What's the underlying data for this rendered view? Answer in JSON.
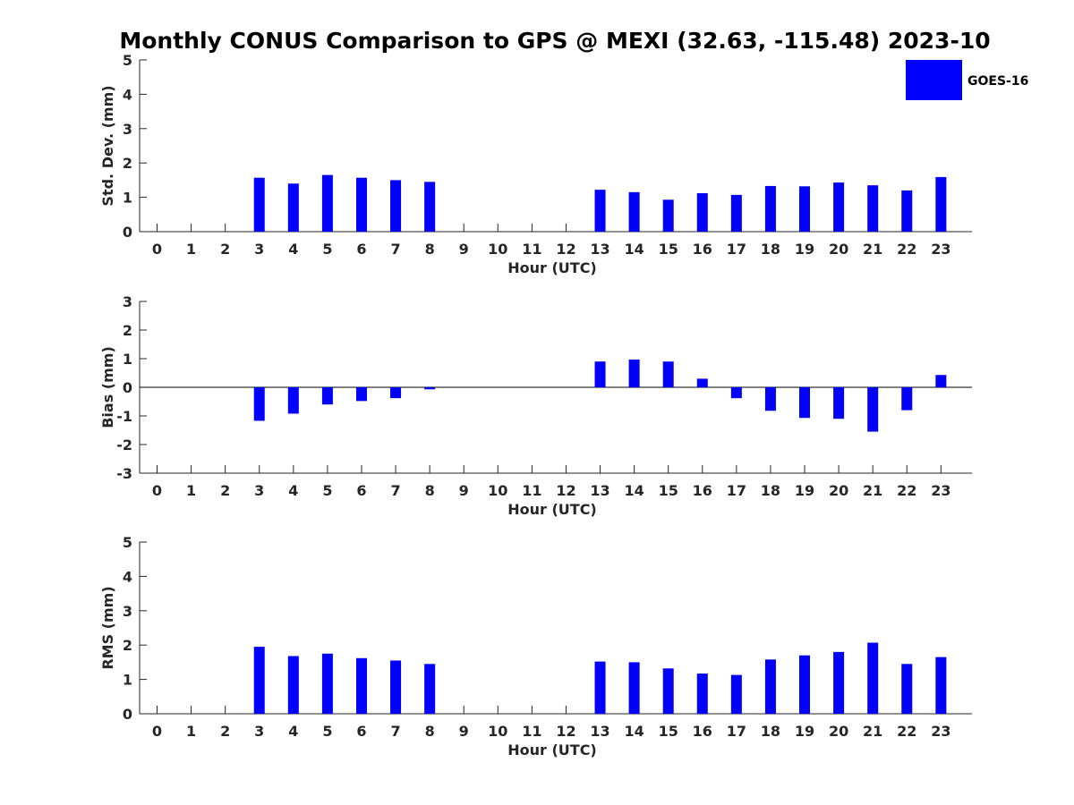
{
  "title": "Monthly CONUS Comparison to GPS @ MEXI (32.63, -115.48) 2023-10",
  "legend": {
    "label": "GOES-16",
    "position": "top-right"
  },
  "colors": {
    "bar": "#0000ff",
    "axis": "#262626",
    "zero_line": "#000000"
  },
  "chart_data": [
    {
      "type": "bar",
      "xlabel": "Hour (UTC)",
      "ylabel": "Std. Dev. (mm)",
      "ylim": [
        0,
        5
      ],
      "yticks": [
        0,
        1,
        2,
        3,
        4,
        5
      ],
      "categories": [
        "0",
        "1",
        "2",
        "3",
        "4",
        "5",
        "6",
        "7",
        "8",
        "9",
        "10",
        "11",
        "12",
        "13",
        "14",
        "15",
        "16",
        "17",
        "18",
        "19",
        "20",
        "21",
        "22",
        "23"
      ],
      "series": [
        {
          "name": "GOES-16",
          "values": [
            null,
            null,
            null,
            1.57,
            1.4,
            1.65,
            1.57,
            1.5,
            1.45,
            null,
            null,
            null,
            null,
            1.22,
            1.15,
            0.93,
            1.12,
            1.07,
            1.33,
            1.32,
            1.43,
            1.35,
            1.2,
            1.59
          ]
        }
      ]
    },
    {
      "type": "bar",
      "xlabel": "Hour (UTC)",
      "ylabel": "Bias (mm)",
      "ylim": [
        -3,
        3
      ],
      "yticks": [
        -3,
        -2,
        -1,
        0,
        1,
        2,
        3
      ],
      "categories": [
        "0",
        "1",
        "2",
        "3",
        "4",
        "5",
        "6",
        "7",
        "8",
        "9",
        "10",
        "11",
        "12",
        "13",
        "14",
        "15",
        "16",
        "17",
        "18",
        "19",
        "20",
        "21",
        "22",
        "23"
      ],
      "series": [
        {
          "name": "GOES-16",
          "values": [
            null,
            null,
            null,
            -1.17,
            -0.92,
            -0.6,
            -0.48,
            -0.38,
            -0.07,
            null,
            null,
            null,
            null,
            0.9,
            0.97,
            0.9,
            0.3,
            -0.38,
            -0.82,
            -1.07,
            -1.1,
            -1.55,
            -0.8,
            0.43
          ]
        }
      ]
    },
    {
      "type": "bar",
      "xlabel": "Hour (UTC)",
      "ylabel": "RMS (mm)",
      "ylim": [
        0,
        5
      ],
      "yticks": [
        0,
        1,
        2,
        3,
        4,
        5
      ],
      "categories": [
        "0",
        "1",
        "2",
        "3",
        "4",
        "5",
        "6",
        "7",
        "8",
        "9",
        "10",
        "11",
        "12",
        "13",
        "14",
        "15",
        "16",
        "17",
        "18",
        "19",
        "20",
        "21",
        "22",
        "23"
      ],
      "series": [
        {
          "name": "GOES-16",
          "values": [
            null,
            null,
            null,
            1.95,
            1.68,
            1.75,
            1.62,
            1.55,
            1.45,
            null,
            null,
            null,
            null,
            1.52,
            1.5,
            1.32,
            1.17,
            1.13,
            1.58,
            1.7,
            1.8,
            2.07,
            1.45,
            1.65
          ]
        }
      ]
    }
  ]
}
